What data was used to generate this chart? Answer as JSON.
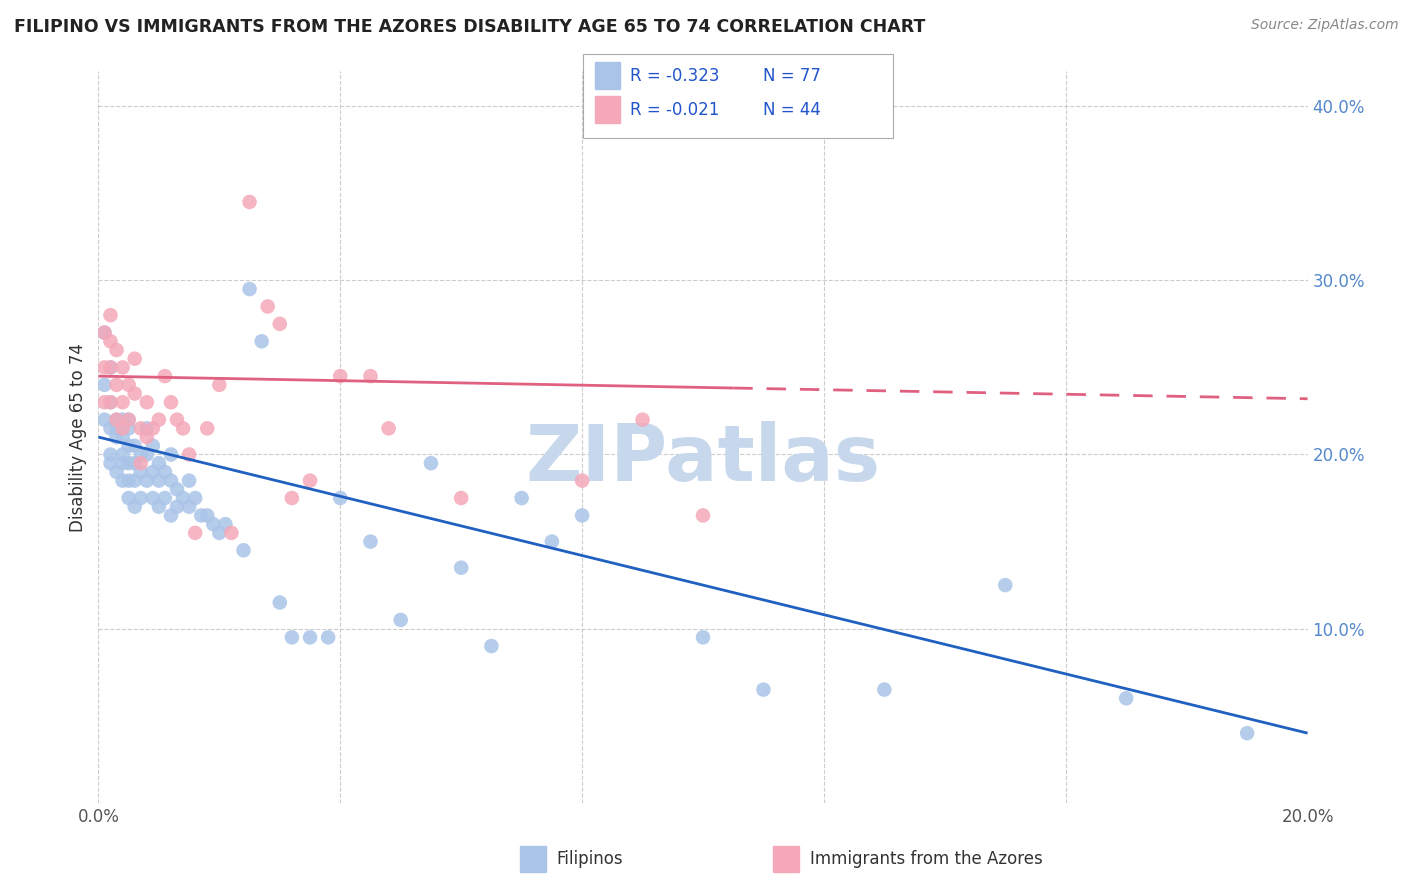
{
  "title": "FILIPINO VS IMMIGRANTS FROM THE AZORES DISABILITY AGE 65 TO 74 CORRELATION CHART",
  "source": "Source: ZipAtlas.com",
  "ylabel": "Disability Age 65 to 74",
  "xlim": [
    0.0,
    0.2
  ],
  "ylim": [
    0.0,
    0.42
  ],
  "xticks": [
    0.0,
    0.04,
    0.08,
    0.12,
    0.16,
    0.2
  ],
  "yticks": [
    0.0,
    0.1,
    0.2,
    0.3,
    0.4
  ],
  "grid_color": "#cccccc",
  "background_color": "#ffffff",
  "filipino_color": "#aac4e8",
  "azores_color": "#f4a8b8",
  "filipino_line_color": "#2060c0",
  "azores_line_color": "#e06080",
  "legend_R_filipino": "-0.323",
  "legend_N_filipino": "77",
  "legend_R_azores": "-0.021",
  "legend_N_azores": "44",
  "legend_label_filipino": "Filipinos",
  "legend_label_azores": "Immigrants from the Azores",
  "filipino_x": [
    0.001,
    0.001,
    0.001,
    0.002,
    0.002,
    0.002,
    0.002,
    0.002,
    0.003,
    0.003,
    0.003,
    0.003,
    0.004,
    0.004,
    0.004,
    0.004,
    0.004,
    0.005,
    0.005,
    0.005,
    0.005,
    0.005,
    0.005,
    0.006,
    0.006,
    0.006,
    0.006,
    0.007,
    0.007,
    0.007,
    0.008,
    0.008,
    0.008,
    0.009,
    0.009,
    0.009,
    0.01,
    0.01,
    0.01,
    0.011,
    0.011,
    0.012,
    0.012,
    0.012,
    0.013,
    0.013,
    0.014,
    0.015,
    0.015,
    0.016,
    0.017,
    0.018,
    0.019,
    0.02,
    0.021,
    0.024,
    0.025,
    0.027,
    0.03,
    0.032,
    0.035,
    0.038,
    0.04,
    0.045,
    0.05,
    0.055,
    0.06,
    0.065,
    0.07,
    0.075,
    0.08,
    0.1,
    0.11,
    0.13,
    0.15,
    0.17,
    0.19
  ],
  "filipino_y": [
    0.27,
    0.24,
    0.22,
    0.25,
    0.23,
    0.215,
    0.2,
    0.195,
    0.22,
    0.215,
    0.21,
    0.19,
    0.22,
    0.21,
    0.2,
    0.195,
    0.185,
    0.22,
    0.215,
    0.205,
    0.195,
    0.185,
    0.175,
    0.205,
    0.195,
    0.185,
    0.17,
    0.2,
    0.19,
    0.175,
    0.215,
    0.2,
    0.185,
    0.205,
    0.19,
    0.175,
    0.195,
    0.185,
    0.17,
    0.19,
    0.175,
    0.2,
    0.185,
    0.165,
    0.18,
    0.17,
    0.175,
    0.185,
    0.17,
    0.175,
    0.165,
    0.165,
    0.16,
    0.155,
    0.16,
    0.145,
    0.295,
    0.265,
    0.115,
    0.095,
    0.095,
    0.095,
    0.175,
    0.15,
    0.105,
    0.195,
    0.135,
    0.09,
    0.175,
    0.15,
    0.165,
    0.095,
    0.065,
    0.065,
    0.125,
    0.06,
    0.04
  ],
  "azores_x": [
    0.001,
    0.001,
    0.001,
    0.002,
    0.002,
    0.002,
    0.002,
    0.003,
    0.003,
    0.003,
    0.004,
    0.004,
    0.004,
    0.005,
    0.005,
    0.006,
    0.006,
    0.007,
    0.007,
    0.008,
    0.008,
    0.009,
    0.01,
    0.011,
    0.012,
    0.013,
    0.014,
    0.015,
    0.016,
    0.018,
    0.02,
    0.022,
    0.025,
    0.028,
    0.03,
    0.032,
    0.035,
    0.04,
    0.045,
    0.048,
    0.06,
    0.08,
    0.09,
    0.1
  ],
  "azores_y": [
    0.27,
    0.25,
    0.23,
    0.28,
    0.265,
    0.25,
    0.23,
    0.26,
    0.24,
    0.22,
    0.25,
    0.23,
    0.215,
    0.24,
    0.22,
    0.255,
    0.235,
    0.215,
    0.195,
    0.23,
    0.21,
    0.215,
    0.22,
    0.245,
    0.23,
    0.22,
    0.215,
    0.2,
    0.155,
    0.215,
    0.24,
    0.155,
    0.345,
    0.285,
    0.275,
    0.175,
    0.185,
    0.245,
    0.245,
    0.215,
    0.175,
    0.185,
    0.22,
    0.165
  ],
  "watermark": "ZIPatlas",
  "watermark_color": "#c8d8ec"
}
